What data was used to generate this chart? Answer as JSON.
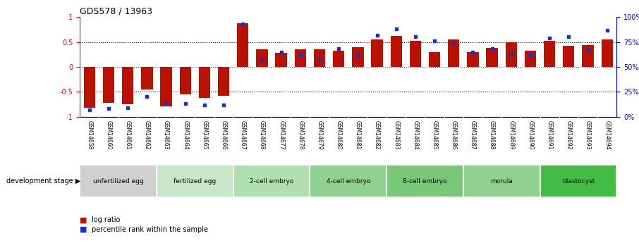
{
  "title": "GDS578 / 13963",
  "samples": [
    "GSM14658",
    "GSM14660",
    "GSM14661",
    "GSM14662",
    "GSM14663",
    "GSM14664",
    "GSM14665",
    "GSM14666",
    "GSM14667",
    "GSM14668",
    "GSM14677",
    "GSM14678",
    "GSM14679",
    "GSM14680",
    "GSM14681",
    "GSM14682",
    "GSM14683",
    "GSM14684",
    "GSM14685",
    "GSM14686",
    "GSM14687",
    "GSM14688",
    "GSM14689",
    "GSM14690",
    "GSM14691",
    "GSM14692",
    "GSM14693",
    "GSM14694"
  ],
  "log_ratio": [
    -0.82,
    -0.72,
    -0.75,
    -0.45,
    -0.8,
    -0.55,
    -0.62,
    -0.58,
    0.88,
    0.35,
    0.28,
    0.35,
    0.35,
    0.32,
    0.4,
    0.55,
    0.62,
    0.52,
    0.3,
    0.55,
    0.3,
    0.38,
    0.5,
    0.32,
    0.52,
    0.42,
    0.43,
    0.55
  ],
  "percentile": [
    7,
    8,
    9,
    20,
    13,
    13,
    12,
    12,
    93,
    57,
    65,
    62,
    58,
    68,
    62,
    82,
    88,
    80,
    76,
    74,
    65,
    68,
    63,
    62,
    79,
    80,
    67,
    87
  ],
  "groups": [
    {
      "label": "unfertilized egg",
      "start": 0,
      "end": 4,
      "color": "#d0d0d0"
    },
    {
      "label": "fertilized egg",
      "start": 4,
      "end": 8,
      "color": "#c8e6c8"
    },
    {
      "label": "2-cell embryo",
      "start": 8,
      "end": 12,
      "color": "#b2dfb2"
    },
    {
      "label": "4-cell embryo",
      "start": 12,
      "end": 16,
      "color": "#90d090"
    },
    {
      "label": "8-cell embryo",
      "start": 16,
      "end": 20,
      "color": "#78c878"
    },
    {
      "label": "morula",
      "start": 20,
      "end": 24,
      "color": "#90d090"
    },
    {
      "label": "blastocyst",
      "start": 24,
      "end": 28,
      "color": "#44bb44"
    }
  ],
  "ylim_left": [
    -1.0,
    1.0
  ],
  "ylim_right": [
    0,
    100
  ],
  "bar_color": "#bb1100",
  "dot_color": "#1133cc",
  "xtick_bg": "#d0d0d0"
}
